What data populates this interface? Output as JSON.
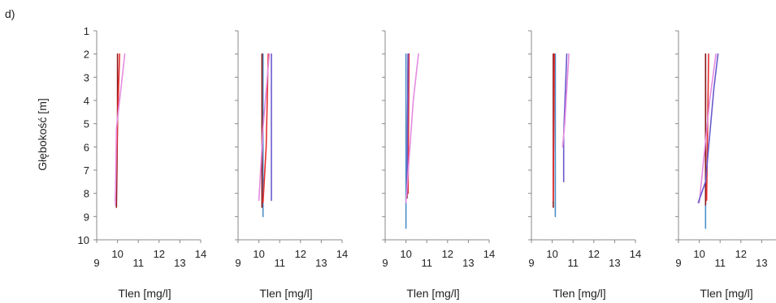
{
  "panel_label": "d)",
  "chart_data": [
    {
      "type": "line",
      "xlabel": "Tlen [mg/l]",
      "ylabel": "Głębokość [m]",
      "xlim": [
        9,
        14
      ],
      "ylim": [
        1,
        10
      ],
      "y_inverted": true,
      "xticks": [
        "9",
        "10",
        "11",
        "12",
        "13",
        "14"
      ],
      "yticks": [
        "1",
        "2",
        "3",
        "4",
        "5",
        "6",
        "7",
        "8",
        "9",
        "10"
      ],
      "series": [
        {
          "color": "#8b1a1a",
          "points": [
            [
              10.0,
              2.0
            ],
            [
              10.0,
              5.0
            ],
            [
              9.95,
              8.6
            ]
          ]
        },
        {
          "color": "#e83030",
          "points": [
            [
              10.1,
              2.0
            ],
            [
              10.0,
              5.0
            ],
            [
              9.9,
              8.3
            ]
          ]
        },
        {
          "color": "#e58be0",
          "points": [
            [
              10.35,
              2.0
            ],
            [
              9.95,
              5.2
            ],
            [
              9.9,
              8.5
            ]
          ]
        }
      ]
    },
    {
      "type": "line",
      "xlabel": "Tlen [mg/l]",
      "ylabel": "",
      "xlim": [
        9,
        14
      ],
      "ylim": [
        1,
        10
      ],
      "y_inverted": true,
      "xticks": [
        "9",
        "10",
        "11",
        "12",
        "13",
        "14"
      ],
      "yticks": [],
      "series": [
        {
          "color": "#4a90c8",
          "points": [
            [
              10.2,
              2.0
            ],
            [
              10.2,
              9.0
            ]
          ]
        },
        {
          "color": "#8b1a1a",
          "points": [
            [
              10.15,
              2.0
            ],
            [
              10.15,
              8.6
            ]
          ]
        },
        {
          "color": "#e83030",
          "points": [
            [
              10.45,
              2.0
            ],
            [
              10.35,
              6.0
            ],
            [
              10.2,
              8.4
            ]
          ]
        },
        {
          "color": "#e58be0",
          "points": [
            [
              10.5,
              2.0
            ],
            [
              10.2,
              5.2
            ],
            [
              10.0,
              8.3
            ]
          ]
        },
        {
          "color": "#6a5acd",
          "points": [
            [
              10.6,
              2.0
            ],
            [
              10.6,
              8.3
            ]
          ]
        }
      ]
    },
    {
      "type": "line",
      "xlabel": "Tlen [mg/l]",
      "ylabel": "",
      "xlim": [
        9,
        14
      ],
      "ylim": [
        1,
        10
      ],
      "y_inverted": true,
      "xticks": [
        "9",
        "10",
        "11",
        "12",
        "13",
        "14"
      ],
      "yticks": [],
      "series": [
        {
          "color": "#4a90c8",
          "points": [
            [
              10.0,
              2.0
            ],
            [
              10.0,
              9.5
            ]
          ]
        },
        {
          "color": "#8b1a1a",
          "points": [
            [
              10.1,
              2.0
            ],
            [
              10.05,
              8.2
            ]
          ]
        },
        {
          "color": "#e83030",
          "points": [
            [
              10.15,
              2.0
            ],
            [
              10.1,
              8.0
            ]
          ]
        },
        {
          "color": "#6a5acd",
          "points": [
            [
              10.1,
              2.0
            ],
            [
              10.05,
              8.0
            ]
          ]
        },
        {
          "color": "#e58be0",
          "points": [
            [
              10.6,
              2.0
            ],
            [
              10.35,
              4.0
            ],
            [
              10.0,
              8.4
            ]
          ]
        }
      ]
    },
    {
      "type": "line",
      "xlabel": "Tlen [mg/l]",
      "ylabel": "",
      "xlim": [
        9,
        14
      ],
      "ylim": [
        1,
        10
      ],
      "y_inverted": true,
      "xticks": [
        "9",
        "10",
        "11",
        "12",
        "13",
        "14"
      ],
      "yticks": [],
      "series": [
        {
          "color": "#4a90c8",
          "points": [
            [
              10.15,
              2.0
            ],
            [
              10.15,
              9.0
            ]
          ]
        },
        {
          "color": "#8b1a1a",
          "points": [
            [
              10.05,
              2.0
            ],
            [
              10.05,
              8.6
            ]
          ]
        },
        {
          "color": "#e83030",
          "points": [
            [
              10.1,
              2.0
            ],
            [
              10.05,
              8.3
            ]
          ]
        },
        {
          "color": "#6a5acd",
          "points": [
            [
              10.7,
              2.0
            ],
            [
              10.55,
              5.5
            ],
            [
              10.55,
              7.5
            ]
          ]
        },
        {
          "color": "#e58be0",
          "points": [
            [
              10.8,
              2.0
            ],
            [
              10.6,
              5.0
            ],
            [
              10.5,
              6.0
            ]
          ]
        }
      ]
    },
    {
      "type": "line",
      "xlabel": "Tlen [mg/l]",
      "ylabel": "",
      "xlim": [
        9,
        14
      ],
      "ylim": [
        1,
        10
      ],
      "y_inverted": true,
      "xticks": [
        "9",
        "10",
        "11",
        "12",
        "13",
        "14"
      ],
      "yticks": [],
      "series": [
        {
          "color": "#4a90c8",
          "points": [
            [
              10.3,
              2.0
            ],
            [
              10.3,
              9.5
            ]
          ]
        },
        {
          "color": "#8b1a1a",
          "points": [
            [
              10.3,
              2.0
            ],
            [
              10.3,
              8.5
            ]
          ]
        },
        {
          "color": "#e83030",
          "points": [
            [
              10.45,
              2.0
            ],
            [
              10.35,
              8.3
            ]
          ]
        },
        {
          "color": "#e58be0",
          "points": [
            [
              10.8,
              2.0
            ],
            [
              10.5,
              4.0
            ],
            [
              10.0,
              8.4
            ]
          ]
        },
        {
          "color": "#6a5acd",
          "points": [
            [
              10.9,
              2.0
            ],
            [
              10.7,
              3.5
            ],
            [
              10.3,
              7.5
            ],
            [
              9.95,
              8.4
            ]
          ]
        }
      ]
    }
  ]
}
